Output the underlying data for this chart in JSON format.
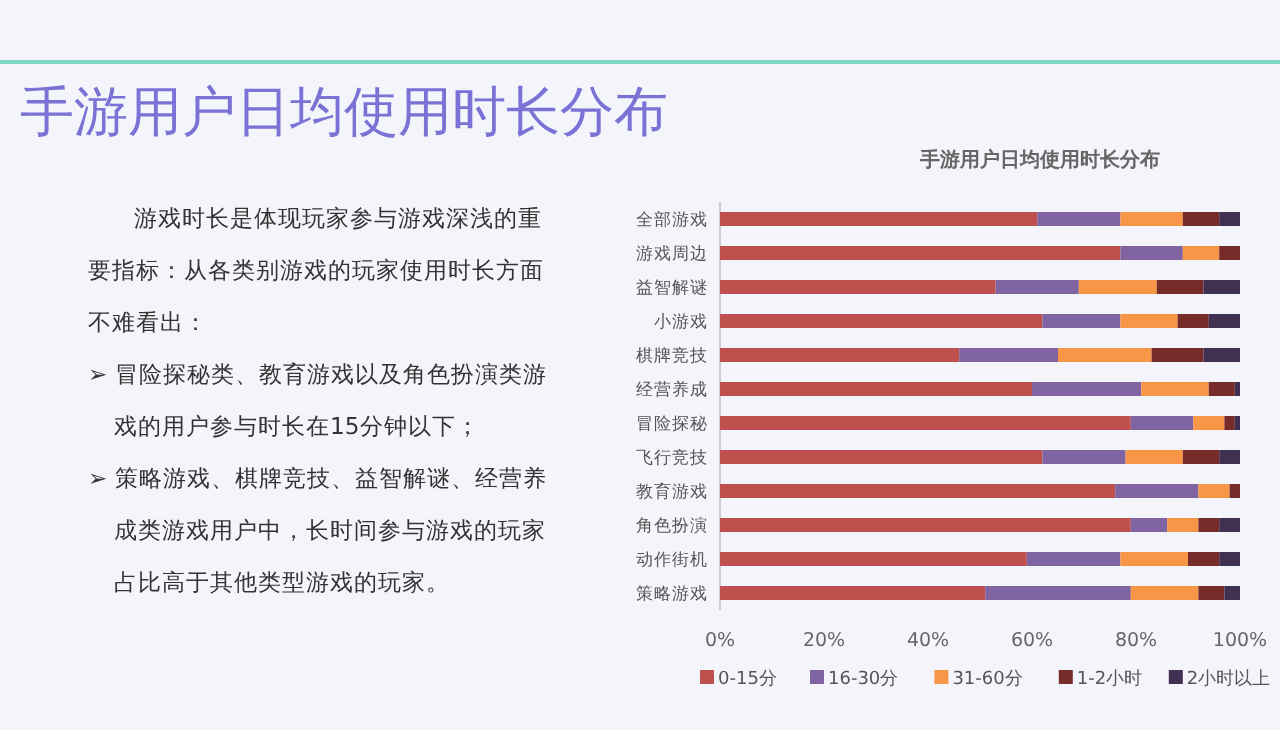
{
  "chart_data": {
    "type": "bar",
    "orientation": "horizontal",
    "stacked": true,
    "title": "手游用户日均使用时长分布",
    "annotations": [
      "手游用户日均使用时长分布",
      "游戏时长是体现玩家参与游戏深浅的重要指标：从各类别游戏的玩家使用时长方面不难看出：",
      "➢ 冒险探秘类、教育游戏以及角色扮演类游戏的用户参与时长在15分钟以下；",
      "➢ 策略游戏、棋牌竞技、益智解谜、经营养成类游戏用户中，长时间参与游戏的玩家占比高于其他类型游戏的玩家。"
    ],
    "categories": [
      "全部游戏",
      "游戏周边",
      "益智解谜",
      "小游戏",
      "棋牌竞技",
      "经营养成",
      "冒险探秘",
      "飞行竞技",
      "教育游戏",
      "角色扮演",
      "动作街机",
      "策略游戏"
    ],
    "series": [
      {
        "name": "0-15分",
        "color": "#c0504d",
        "values": [
          61,
          77,
          53,
          62,
          46,
          60,
          79,
          62,
          76,
          79,
          59,
          51
        ]
      },
      {
        "name": "16-30分",
        "color": "#8064a2",
        "values": [
          16,
          12,
          16,
          15,
          19,
          21,
          12,
          16,
          16,
          7,
          18,
          28
        ]
      },
      {
        "name": "31-60分",
        "color": "#f79646",
        "values": [
          12,
          7,
          15,
          11,
          18,
          13,
          6,
          11,
          6,
          6,
          13,
          13
        ]
      },
      {
        "name": "1-2小时",
        "color": "#772c2a",
        "values": [
          7,
          4,
          9,
          6,
          10,
          5,
          2,
          7,
          2,
          4,
          6,
          5
        ]
      },
      {
        "name": "2小时以上",
        "color": "#403152",
        "values": [
          4,
          0,
          7,
          6,
          7,
          1,
          1,
          4,
          0,
          4,
          4,
          3
        ]
      }
    ],
    "xlim": [
      0,
      100
    ],
    "xticks": [
      {
        "value": 0,
        "label": "0%"
      },
      {
        "value": 20,
        "label": "20%"
      },
      {
        "value": 40,
        "label": "40%"
      },
      {
        "value": 60,
        "label": "60%"
      },
      {
        "value": 80,
        "label": "80%"
      },
      {
        "value": 100,
        "label": "100%"
      }
    ],
    "legend": "bottom"
  }
}
